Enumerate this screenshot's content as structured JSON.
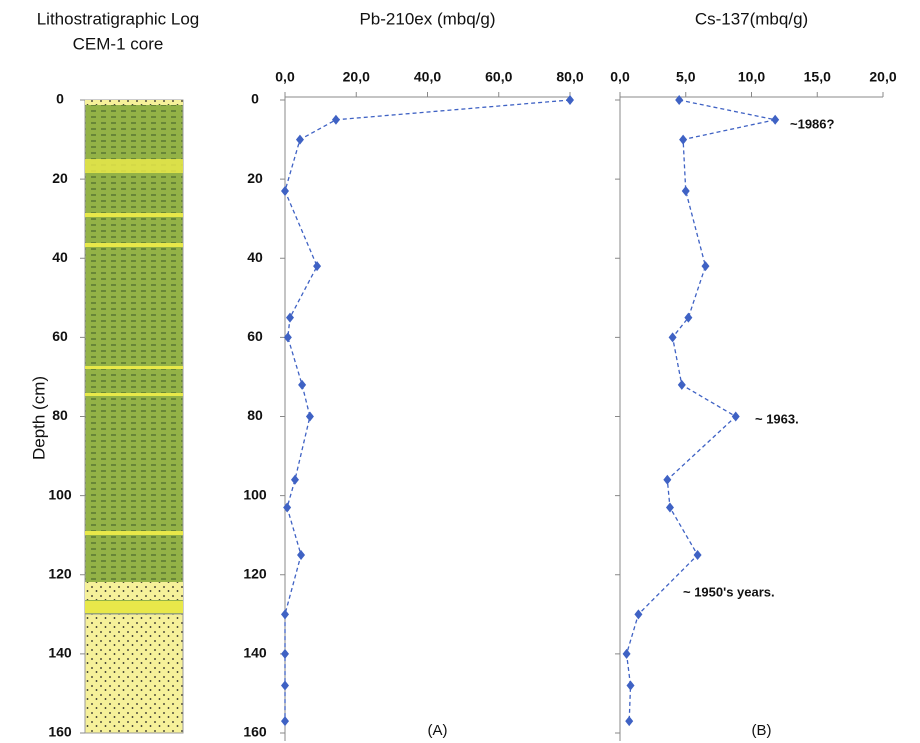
{
  "log": {
    "title": [
      "Lithostratigraphic Log",
      "CEM-1 core"
    ],
    "ylabel": "Depth (cm)",
    "ylim": [
      0,
      160
    ],
    "yticks": [
      0,
      20,
      40,
      60,
      80,
      100,
      120,
      140,
      160
    ]
  },
  "chart_data": [
    {
      "type": "line",
      "title": "Pb-210ex (mbq/g)",
      "label": "(A)",
      "color": "#3f62c4",
      "depth": [
        0,
        5,
        10,
        23,
        42,
        55,
        60,
        72,
        80,
        96,
        103,
        115,
        130,
        140,
        148,
        157
      ],
      "values": [
        80,
        14.3,
        4.2,
        0,
        9,
        1.4,
        0.8,
        4.8,
        7,
        2.8,
        0.6,
        4.5,
        0,
        0,
        0,
        0
      ],
      "xlim": [
        0,
        80
      ],
      "xticks": [
        {
          "value": 0,
          "label": "0,0"
        },
        {
          "value": 20,
          "label": "20,0"
        },
        {
          "value": 40,
          "label": "40,0"
        },
        {
          "value": 60,
          "label": "60,0"
        },
        {
          "value": 80,
          "label": "80,0"
        }
      ],
      "ylim": [
        0,
        160
      ],
      "yticks": [
        0,
        20,
        40,
        60,
        80,
        100,
        120,
        140,
        160
      ],
      "show_ytick_labels": true,
      "annotations": []
    },
    {
      "type": "line",
      "title": "Cs-137(mbq/g)",
      "label": "(B)",
      "color": "#3f62c4",
      "depth": [
        0,
        5,
        10,
        23,
        42,
        55,
        60,
        72,
        80,
        96,
        103,
        115,
        130,
        140,
        148,
        157
      ],
      "values": [
        4.5,
        11.8,
        4.8,
        5,
        6.5,
        5.2,
        4,
        4.7,
        8.8,
        3.6,
        3.8,
        5.9,
        1.4,
        0.5,
        0.8,
        0.7
      ],
      "xlim": [
        0,
        20
      ],
      "xticks": [
        {
          "value": 0,
          "label": "0,0"
        },
        {
          "value": 5,
          "label": "5,0"
        },
        {
          "value": 10,
          "label": "10,0"
        },
        {
          "value": 15,
          "label": "15,0"
        },
        {
          "value": 20,
          "label": "20,0"
        }
      ],
      "ylim": [
        0,
        160
      ],
      "yticks": [
        0,
        20,
        40,
        60,
        80,
        100,
        120,
        140,
        160
      ],
      "show_ytick_labels": false,
      "annotations": [
        "~1986?",
        "~ 1963.",
        "~ 1950's years."
      ]
    }
  ]
}
